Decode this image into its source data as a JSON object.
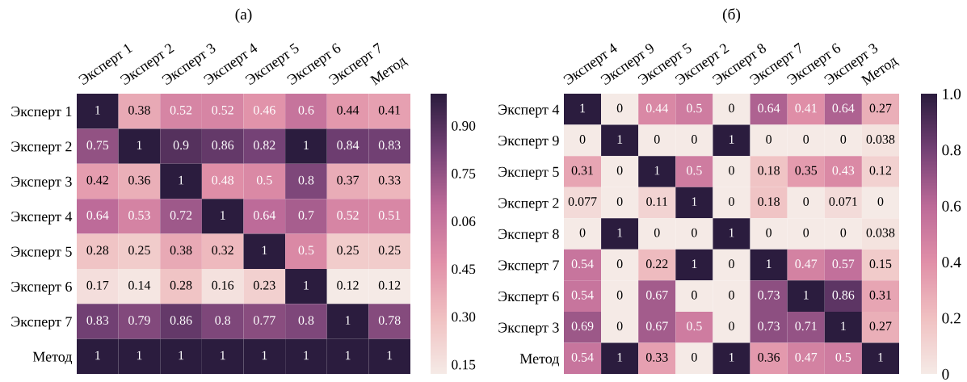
{
  "chart_data": [
    {
      "type": "heatmap",
      "title": "(а)",
      "categories": [
        "Эксперт 1",
        "Эксперт 2",
        "Эксперт 3",
        "Эксперт 4",
        "Эксперт 5",
        "Эксперт 6",
        "Эксперт 7",
        "Метод"
      ],
      "y_categories": [
        "Эксперт 1",
        "Эксперт 2",
        "Эксперт 3",
        "Эксперт 4",
        "Эксперт 5",
        "Эксперт 6",
        "Эксперт 7",
        "Метод"
      ],
      "cells": [
        [
          1,
          0.38,
          0.52,
          0.52,
          0.46,
          0.6,
          0.44,
          0.41
        ],
        [
          0.75,
          1,
          0.9,
          0.86,
          0.82,
          1,
          0.84,
          0.83
        ],
        [
          0.42,
          0.36,
          1,
          0.48,
          0.5,
          0.8,
          0.37,
          0.33
        ],
        [
          0.64,
          0.53,
          0.72,
          1,
          0.64,
          0.7,
          0.52,
          0.51
        ],
        [
          0.28,
          0.25,
          0.38,
          0.32,
          1,
          0.5,
          0.25,
          0.25
        ],
        [
          0.17,
          0.14,
          0.28,
          0.16,
          0.23,
          1,
          0.12,
          0.12
        ],
        [
          0.83,
          0.79,
          0.86,
          0.8,
          0.77,
          0.8,
          1,
          0.78
        ],
        [
          1,
          1,
          1,
          1,
          1,
          1,
          1,
          1
        ]
      ],
      "clim": [
        0.12,
        1
      ],
      "cticks": [
        {
          "value": 0.15,
          "label": "0.15"
        },
        {
          "value": 0.3,
          "label": "0.30"
        },
        {
          "value": 0.45,
          "label": "0.45"
        },
        {
          "value": 0.75,
          "label": "0.75"
        },
        {
          "value": 0.9,
          "label": "0.90"
        }
      ],
      "annotations": [
        "0.06"
      ],
      "data_labels": true
    },
    {
      "type": "heatmap",
      "title": "(б)",
      "categories": [
        "Эксперт 4",
        "Эксперт 9",
        "Эксперт 5",
        "Эксперт 2",
        "Эксперт 8",
        "Эксперт 7",
        "Эксперт 6",
        "Эксперт 3",
        "Метод"
      ],
      "y_categories": [
        "Эксперт 4",
        "Эксперт 9",
        "Эксперт 5",
        "Эксперт 2",
        "Эксперт 8",
        "Эксперт 7",
        "Эксперт 6",
        "Эксперт 3",
        "Метод"
      ],
      "cells": [
        [
          1,
          0,
          0.44,
          0.5,
          0,
          0.64,
          0.41,
          0.64,
          0.27
        ],
        [
          0,
          1,
          0,
          0,
          1,
          0,
          0,
          0,
          0.038
        ],
        [
          0.31,
          0,
          1,
          0.5,
          0,
          0.18,
          0.35,
          0.43,
          0.12
        ],
        [
          0.077,
          0,
          0.11,
          1,
          0,
          0.18,
          0,
          0.071,
          0
        ],
        [
          0,
          1,
          0,
          0,
          1,
          0,
          0,
          0,
          0.038
        ],
        [
          0.54,
          0,
          0.22,
          1,
          0,
          1,
          0.47,
          0.57,
          0.15
        ],
        [
          0.54,
          0,
          0.67,
          0,
          0,
          0.73,
          1,
          0.86,
          0.31
        ],
        [
          0.69,
          0,
          0.67,
          0.5,
          0,
          0.73,
          0.71,
          1,
          0.27
        ],
        [
          0.54,
          1,
          0.33,
          0,
          1,
          0.36,
          0.47,
          0.5,
          1
        ]
      ],
      "clim": [
        0,
        1
      ],
      "cticks": [
        0,
        0.2,
        0.4,
        0.6,
        0.8,
        {
          "value": 1,
          "label": "1.0"
        }
      ],
      "data_labels": true
    }
  ]
}
